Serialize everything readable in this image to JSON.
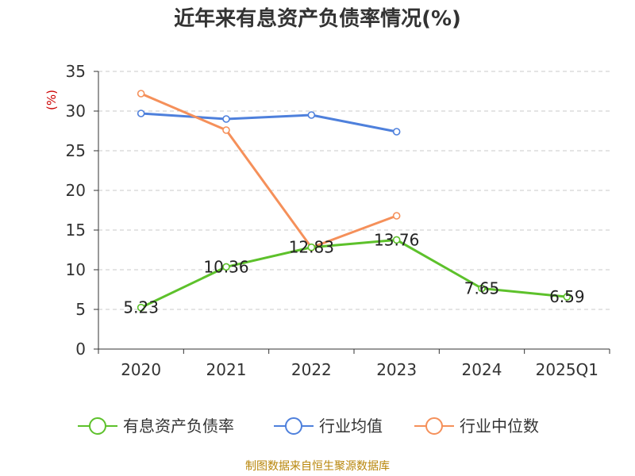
{
  "chart_data": {
    "type": "line",
    "title": "近年来有息资产负债率情况(%)",
    "ylabel": "(%)",
    "xlabel": "",
    "categories": [
      "2020",
      "2021",
      "2022",
      "2023",
      "2024",
      "2025Q1"
    ],
    "ylim": [
      0,
      35
    ],
    "yticks": [
      0,
      5,
      10,
      15,
      20,
      25,
      30,
      35
    ],
    "grid": "horizontal dashed",
    "legend_position": "bottom",
    "series": [
      {
        "name": "有息资产负债率",
        "color": "#5dc12b",
        "values": [
          5.23,
          10.36,
          12.83,
          13.76,
          7.65,
          6.59
        ],
        "labels": [
          "5.23",
          "10.36",
          "12.83",
          "13.76",
          "7.65",
          "6.59"
        ]
      },
      {
        "name": "行业均值",
        "color": "#4e80dc",
        "values": [
          29.7,
          29.0,
          29.5,
          27.4,
          null,
          null
        ]
      },
      {
        "name": "行业中位数",
        "color": "#f5905a",
        "values": [
          32.2,
          27.6,
          12.8,
          16.8,
          null,
          null
        ]
      }
    ]
  },
  "source": "制图数据来自恒生聚源数据库"
}
